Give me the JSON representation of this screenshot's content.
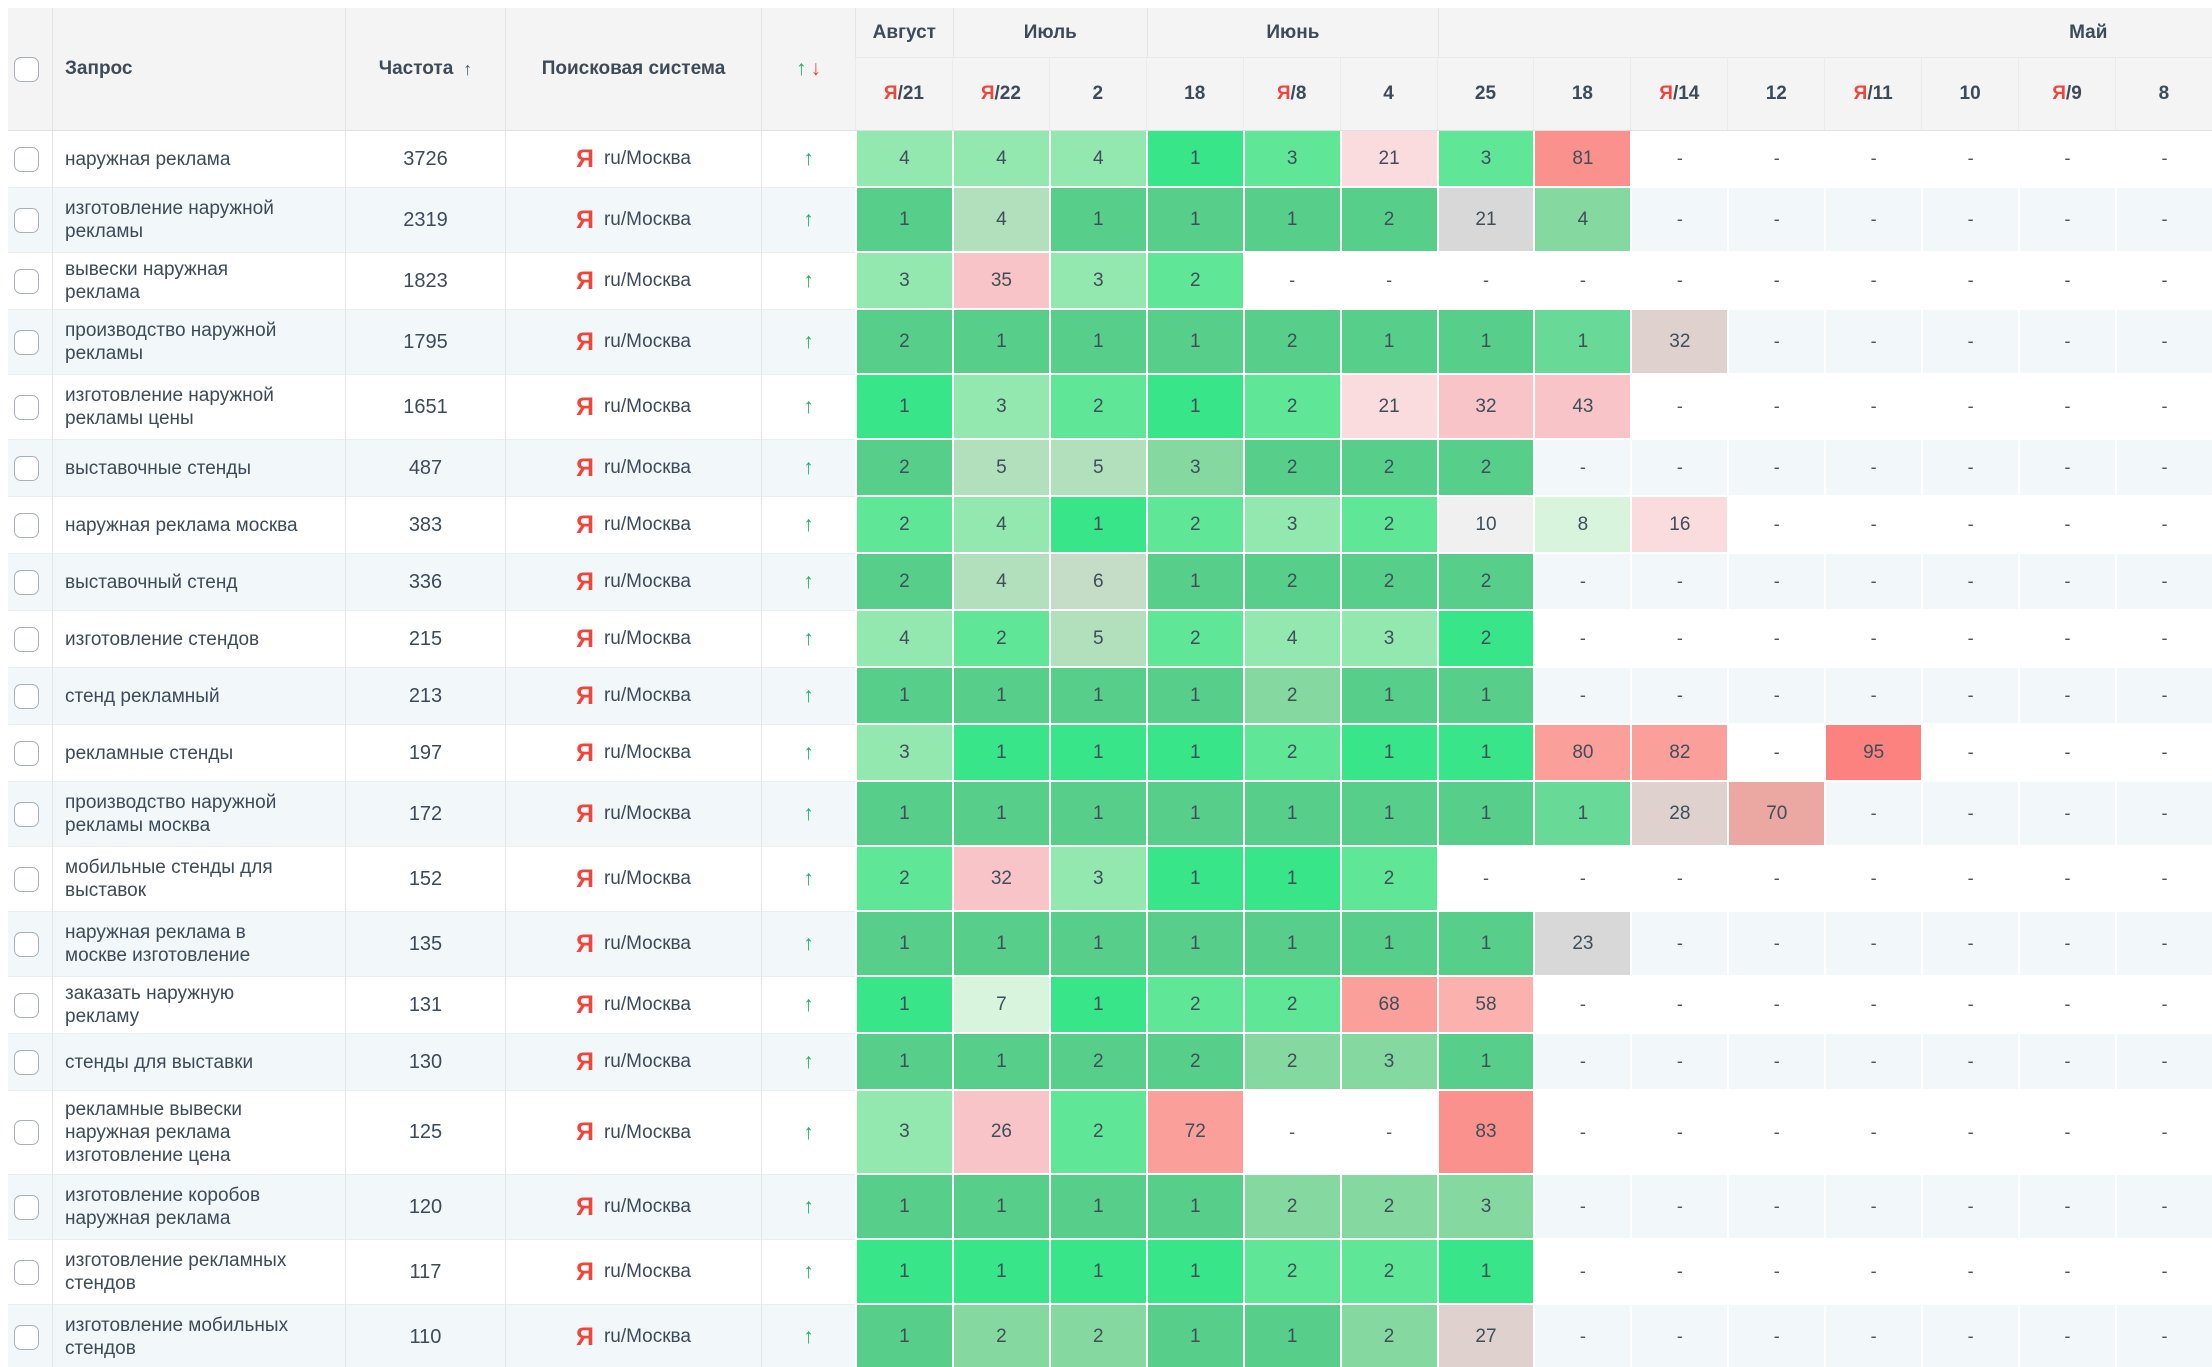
{
  "palette": {
    "a": "#38e588",
    "b": "#5fe697",
    "c": "#92e8af",
    "d": "#b2dfbc",
    "e": "#d8f4dc",
    "f": "#57cf8b",
    "g": "#68d996",
    "h": "#85d9a0",
    "i": "#c5dcc7",
    "gray": "#d8d8d8",
    "silver": "#f0f0f0",
    "taupe": "#ded1ce",
    "pp": "#fadcde",
    "pk": "#f8c4c8",
    "sa": "#fb9f9a",
    "sl": "#fbb2ae",
    "sr": "#fa918c",
    "rd": "#fb827f",
    "du": "#eba7a2"
  },
  "row_tints": {
    "odd": "#ffffff",
    "even": "#f2f7fa"
  },
  "header": {
    "query": "Запрос",
    "frequency": "Частота",
    "frequency_sort": "↑",
    "engine": "Поисковая система",
    "trend_up": "↑",
    "trend_down": "↓",
    "months": [
      {
        "label": "Август",
        "span": 1
      },
      {
        "label": "Июль",
        "span": 2
      },
      {
        "label": "Июнь",
        "span": 3
      },
      {
        "label": "Май",
        "span": 8,
        "label_align": "right"
      }
    ],
    "dates": [
      {
        "ya": true,
        "day": "21"
      },
      {
        "ya": true,
        "day": "22"
      },
      {
        "ya": false,
        "day": "2"
      },
      {
        "ya": false,
        "day": "18"
      },
      {
        "ya": true,
        "day": "8"
      },
      {
        "ya": false,
        "day": "4"
      },
      {
        "ya": false,
        "day": "25"
      },
      {
        "ya": false,
        "day": "18"
      },
      {
        "ya": true,
        "day": "14"
      },
      {
        "ya": false,
        "day": "12"
      },
      {
        "ya": true,
        "day": "11"
      },
      {
        "ya": false,
        "day": "10"
      },
      {
        "ya": true,
        "day": "9"
      },
      {
        "ya": false,
        "day": "8"
      }
    ]
  },
  "engine_icon": "Я",
  "engine_region": "ru/Москва",
  "row_trend": "↑",
  "dash": "-",
  "rows": [
    {
      "query": "наружная реклама",
      "frequency": "3726",
      "lines": 1,
      "positions": [
        [
          "4",
          "c"
        ],
        [
          "4",
          "c"
        ],
        [
          "4",
          "c"
        ],
        [
          "1",
          "a"
        ],
        [
          "3",
          "b"
        ],
        [
          "21",
          "pp"
        ],
        [
          "3",
          "b"
        ],
        [
          "81",
          "sr"
        ],
        [
          "-",
          ""
        ],
        [
          "-",
          ""
        ],
        [
          "-",
          ""
        ],
        [
          "-",
          ""
        ],
        [
          "-",
          ""
        ],
        [
          "-",
          ""
        ]
      ]
    },
    {
      "query": "изготовление наружной рекламы",
      "frequency": "2319",
      "lines": 2,
      "positions": [
        [
          "1",
          "f"
        ],
        [
          "4",
          "d"
        ],
        [
          "1",
          "f"
        ],
        [
          "1",
          "f"
        ],
        [
          "1",
          "f"
        ],
        [
          "2",
          "f"
        ],
        [
          "21",
          "gray"
        ],
        [
          "4",
          "h"
        ],
        [
          "-",
          ""
        ],
        [
          "-",
          ""
        ],
        [
          "-",
          ""
        ],
        [
          "-",
          ""
        ],
        [
          "-",
          ""
        ],
        [
          "-",
          ""
        ]
      ]
    },
    {
      "query": "вывески наружная реклама",
      "frequency": "1823",
      "lines": 1,
      "positions": [
        [
          "3",
          "c"
        ],
        [
          "35",
          "pk"
        ],
        [
          "3",
          "c"
        ],
        [
          "2",
          "b"
        ],
        [
          "-",
          ""
        ],
        [
          "-",
          ""
        ],
        [
          "-",
          ""
        ],
        [
          "-",
          ""
        ],
        [
          "-",
          ""
        ],
        [
          "-",
          ""
        ],
        [
          "-",
          ""
        ],
        [
          "-",
          ""
        ],
        [
          "-",
          ""
        ],
        [
          "-",
          ""
        ]
      ]
    },
    {
      "query": "производство наружной рекламы",
      "frequency": "1795",
      "lines": 2,
      "positions": [
        [
          "2",
          "f"
        ],
        [
          "1",
          "f"
        ],
        [
          "1",
          "f"
        ],
        [
          "1",
          "f"
        ],
        [
          "2",
          "f"
        ],
        [
          "1",
          "f"
        ],
        [
          "1",
          "f"
        ],
        [
          "1",
          "g"
        ],
        [
          "32",
          "taupe"
        ],
        [
          "-",
          ""
        ],
        [
          "-",
          ""
        ],
        [
          "-",
          ""
        ],
        [
          "-",
          ""
        ],
        [
          "-",
          ""
        ]
      ]
    },
    {
      "query": "изготовление наружной рекламы цены",
      "frequency": "1651",
      "lines": 2,
      "positions": [
        [
          "1",
          "a"
        ],
        [
          "3",
          "c"
        ],
        [
          "2",
          "b"
        ],
        [
          "1",
          "a"
        ],
        [
          "2",
          "b"
        ],
        [
          "21",
          "pp"
        ],
        [
          "32",
          "pk"
        ],
        [
          "43",
          "pk"
        ],
        [
          "-",
          ""
        ],
        [
          "-",
          ""
        ],
        [
          "-",
          ""
        ],
        [
          "-",
          ""
        ],
        [
          "-",
          ""
        ],
        [
          "-",
          ""
        ]
      ]
    },
    {
      "query": "выставочные стенды",
      "frequency": "487",
      "lines": 1,
      "positions": [
        [
          "2",
          "f"
        ],
        [
          "5",
          "d"
        ],
        [
          "5",
          "d"
        ],
        [
          "3",
          "h"
        ],
        [
          "2",
          "f"
        ],
        [
          "2",
          "f"
        ],
        [
          "2",
          "f"
        ],
        [
          "-",
          ""
        ],
        [
          "-",
          ""
        ],
        [
          "-",
          ""
        ],
        [
          "-",
          ""
        ],
        [
          "-",
          ""
        ],
        [
          "-",
          ""
        ],
        [
          "-",
          ""
        ]
      ]
    },
    {
      "query": "наружная реклама москва",
      "frequency": "383",
      "lines": 1,
      "positions": [
        [
          "2",
          "b"
        ],
        [
          "4",
          "c"
        ],
        [
          "1",
          "a"
        ],
        [
          "2",
          "b"
        ],
        [
          "3",
          "c"
        ],
        [
          "2",
          "b"
        ],
        [
          "10",
          "silver"
        ],
        [
          "8",
          "e"
        ],
        [
          "16",
          "pp"
        ],
        [
          "-",
          ""
        ],
        [
          "-",
          ""
        ],
        [
          "-",
          ""
        ],
        [
          "-",
          ""
        ],
        [
          "-",
          ""
        ]
      ]
    },
    {
      "query": "выставочный стенд",
      "frequency": "336",
      "lines": 1,
      "positions": [
        [
          "2",
          "f"
        ],
        [
          "4",
          "d"
        ],
        [
          "6",
          "i"
        ],
        [
          "1",
          "f"
        ],
        [
          "2",
          "f"
        ],
        [
          "2",
          "f"
        ],
        [
          "2",
          "f"
        ],
        [
          "-",
          ""
        ],
        [
          "-",
          ""
        ],
        [
          "-",
          ""
        ],
        [
          "-",
          ""
        ],
        [
          "-",
          ""
        ],
        [
          "-",
          ""
        ],
        [
          "-",
          ""
        ]
      ]
    },
    {
      "query": "изготовление стендов",
      "frequency": "215",
      "lines": 1,
      "positions": [
        [
          "4",
          "c"
        ],
        [
          "2",
          "b"
        ],
        [
          "5",
          "d"
        ],
        [
          "2",
          "b"
        ],
        [
          "4",
          "c"
        ],
        [
          "3",
          "c"
        ],
        [
          "2",
          "a"
        ],
        [
          "-",
          ""
        ],
        [
          "-",
          ""
        ],
        [
          "-",
          ""
        ],
        [
          "-",
          ""
        ],
        [
          "-",
          ""
        ],
        [
          "-",
          ""
        ],
        [
          "-",
          ""
        ]
      ]
    },
    {
      "query": "стенд рекламный",
      "frequency": "213",
      "lines": 1,
      "positions": [
        [
          "1",
          "f"
        ],
        [
          "1",
          "f"
        ],
        [
          "1",
          "f"
        ],
        [
          "1",
          "f"
        ],
        [
          "2",
          "h"
        ],
        [
          "1",
          "f"
        ],
        [
          "1",
          "f"
        ],
        [
          "-",
          ""
        ],
        [
          "-",
          ""
        ],
        [
          "-",
          ""
        ],
        [
          "-",
          ""
        ],
        [
          "-",
          ""
        ],
        [
          "-",
          ""
        ],
        [
          "-",
          ""
        ]
      ]
    },
    {
      "query": "рекламные стенды",
      "frequency": "197",
      "lines": 1,
      "positions": [
        [
          "3",
          "c"
        ],
        [
          "1",
          "a"
        ],
        [
          "1",
          "a"
        ],
        [
          "1",
          "a"
        ],
        [
          "2",
          "b"
        ],
        [
          "1",
          "a"
        ],
        [
          "1",
          "a"
        ],
        [
          "80",
          "sa"
        ],
        [
          "82",
          "sa"
        ],
        [
          "-",
          ""
        ],
        [
          "95",
          "rd"
        ],
        [
          "-",
          ""
        ],
        [
          "-",
          ""
        ],
        [
          "-",
          ""
        ]
      ]
    },
    {
      "query": "производство наружной рекламы москва",
      "frequency": "172",
      "lines": 2,
      "positions": [
        [
          "1",
          "f"
        ],
        [
          "1",
          "f"
        ],
        [
          "1",
          "f"
        ],
        [
          "1",
          "f"
        ],
        [
          "1",
          "f"
        ],
        [
          "1",
          "f"
        ],
        [
          "1",
          "f"
        ],
        [
          "1",
          "g"
        ],
        [
          "28",
          "taupe"
        ],
        [
          "70",
          "du"
        ],
        [
          "-",
          ""
        ],
        [
          "-",
          ""
        ],
        [
          "-",
          ""
        ],
        [
          "-",
          ""
        ]
      ]
    },
    {
      "query": "мобильные стенды для выставок",
      "frequency": "152",
      "lines": 2,
      "positions": [
        [
          "2",
          "b"
        ],
        [
          "32",
          "pk"
        ],
        [
          "3",
          "c"
        ],
        [
          "1",
          "a"
        ],
        [
          "1",
          "a"
        ],
        [
          "2",
          "b"
        ],
        [
          "-",
          ""
        ],
        [
          "-",
          ""
        ],
        [
          "-",
          ""
        ],
        [
          "-",
          ""
        ],
        [
          "-",
          ""
        ],
        [
          "-",
          ""
        ],
        [
          "-",
          ""
        ],
        [
          "-",
          ""
        ]
      ]
    },
    {
      "query": "наружная реклама в москве изготовление",
      "frequency": "135",
      "lines": 2,
      "positions": [
        [
          "1",
          "f"
        ],
        [
          "1",
          "f"
        ],
        [
          "1",
          "f"
        ],
        [
          "1",
          "f"
        ],
        [
          "1",
          "f"
        ],
        [
          "1",
          "f"
        ],
        [
          "1",
          "f"
        ],
        [
          "23",
          "gray"
        ],
        [
          "-",
          ""
        ],
        [
          "-",
          ""
        ],
        [
          "-",
          ""
        ],
        [
          "-",
          ""
        ],
        [
          "-",
          ""
        ],
        [
          "-",
          ""
        ]
      ]
    },
    {
      "query": "заказать наружную рекламу",
      "frequency": "131",
      "lines": 1,
      "positions": [
        [
          "1",
          "a"
        ],
        [
          "7",
          "e"
        ],
        [
          "1",
          "a"
        ],
        [
          "2",
          "b"
        ],
        [
          "2",
          "b"
        ],
        [
          "68",
          "sa"
        ],
        [
          "58",
          "sl"
        ],
        [
          "-",
          ""
        ],
        [
          "-",
          ""
        ],
        [
          "-",
          ""
        ],
        [
          "-",
          ""
        ],
        [
          "-",
          ""
        ],
        [
          "-",
          ""
        ],
        [
          "-",
          ""
        ]
      ]
    },
    {
      "query": "стенды для выставки",
      "frequency": "130",
      "lines": 1,
      "positions": [
        [
          "1",
          "f"
        ],
        [
          "1",
          "f"
        ],
        [
          "2",
          "f"
        ],
        [
          "2",
          "f"
        ],
        [
          "2",
          "h"
        ],
        [
          "3",
          "h"
        ],
        [
          "1",
          "f"
        ],
        [
          "-",
          ""
        ],
        [
          "-",
          ""
        ],
        [
          "-",
          ""
        ],
        [
          "-",
          ""
        ],
        [
          "-",
          ""
        ],
        [
          "-",
          ""
        ],
        [
          "-",
          ""
        ]
      ]
    },
    {
      "query": "рекламные вывески наружная реклама изготовление цена",
      "frequency": "125",
      "lines": 3,
      "positions": [
        [
          "3",
          "c"
        ],
        [
          "26",
          "pk"
        ],
        [
          "2",
          "b"
        ],
        [
          "72",
          "sa"
        ],
        [
          "-",
          ""
        ],
        [
          "-",
          ""
        ],
        [
          "83",
          "sr"
        ],
        [
          "-",
          ""
        ],
        [
          "-",
          ""
        ],
        [
          "-",
          ""
        ],
        [
          "-",
          ""
        ],
        [
          "-",
          ""
        ],
        [
          "-",
          ""
        ],
        [
          "-",
          ""
        ]
      ]
    },
    {
      "query": "изготовление коробов наружная реклама",
      "frequency": "120",
      "lines": 2,
      "positions": [
        [
          "1",
          "f"
        ],
        [
          "1",
          "f"
        ],
        [
          "1",
          "f"
        ],
        [
          "1",
          "f"
        ],
        [
          "2",
          "h"
        ],
        [
          "2",
          "h"
        ],
        [
          "3",
          "h"
        ],
        [
          "-",
          ""
        ],
        [
          "-",
          ""
        ],
        [
          "-",
          ""
        ],
        [
          "-",
          ""
        ],
        [
          "-",
          ""
        ],
        [
          "-",
          ""
        ],
        [
          "-",
          ""
        ]
      ]
    },
    {
      "query": "изготовление рекламных стендов",
      "frequency": "117",
      "lines": 2,
      "positions": [
        [
          "1",
          "a"
        ],
        [
          "1",
          "a"
        ],
        [
          "1",
          "a"
        ],
        [
          "1",
          "a"
        ],
        [
          "2",
          "b"
        ],
        [
          "2",
          "b"
        ],
        [
          "1",
          "a"
        ],
        [
          "-",
          ""
        ],
        [
          "-",
          ""
        ],
        [
          "-",
          ""
        ],
        [
          "-",
          ""
        ],
        [
          "-",
          ""
        ],
        [
          "-",
          ""
        ],
        [
          "-",
          ""
        ]
      ]
    },
    {
      "query": "изготовление мобильных стендов",
      "frequency": "110",
      "lines": 2,
      "positions": [
        [
          "1",
          "f"
        ],
        [
          "2",
          "h"
        ],
        [
          "2",
          "h"
        ],
        [
          "1",
          "f"
        ],
        [
          "1",
          "f"
        ],
        [
          "2",
          "h"
        ],
        [
          "27",
          "taupe"
        ],
        [
          "-",
          ""
        ],
        [
          "-",
          ""
        ],
        [
          "-",
          ""
        ],
        [
          "-",
          ""
        ],
        [
          "-",
          ""
        ],
        [
          "-",
          ""
        ],
        [
          "-",
          ""
        ]
      ]
    }
  ]
}
